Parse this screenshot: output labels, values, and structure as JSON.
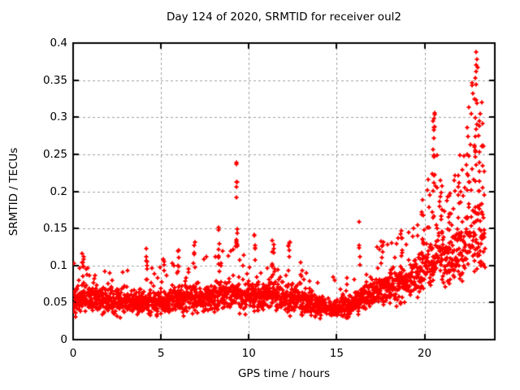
{
  "figure": {
    "title": "Day 124 of 2020, SRMTID for receiver oul2"
  },
  "chart_data": {
    "type": "scatter",
    "title": "Day 124 of 2020, SRMTID for receiver oul2",
    "xlabel": "GPS time / hours",
    "ylabel": "SRMTID / TECUs",
    "xlim": [
      0,
      24
    ],
    "ylim": [
      0,
      0.4
    ],
    "xtick_values": [
      0,
      5,
      10,
      15,
      20
    ],
    "xtick_labels": [
      "0",
      "5",
      "10",
      "15",
      "20"
    ],
    "ytick_values": [
      0,
      0.05,
      0.1,
      0.15,
      0.2,
      0.25,
      0.3,
      0.35,
      0.4
    ],
    "ytick_labels": [
      "0",
      "0.05",
      "0.1",
      "0.15",
      "0.2",
      "0.25",
      "0.3",
      "0.35",
      "0.4"
    ],
    "grid": true,
    "legend": "none",
    "marker": "plus",
    "marker_color": "#ff0000",
    "axis_color": "#000000",
    "grid_color": "#a0a0a0",
    "description": "Dense band of ~30s samples between 0.03 and 0.09 TECUs for hours 0-16, quietest near hour 14-15.5; activity rises after hour 16. Isolated spike columns: ~0.12 near hours 0.6/4.2/5.2/6; ~0.15-0.16 near 6.9/8.4/11.4/12.3/16.3/18.7; ~0.24 column at hour 9.3; ~0.31 column at hour 20.5; maximum ~0.40 in the column near hour 22.9-23.1. Data ends near hour 23.4.",
    "synthesis": {
      "seed": 124,
      "n_base": 2300,
      "t_max": 23.45,
      "baseline": [
        [
          0,
          0.054
        ],
        [
          1.5,
          0.053
        ],
        [
          3,
          0.051
        ],
        [
          4.5,
          0.05
        ],
        [
          6,
          0.054
        ],
        [
          7.5,
          0.058
        ],
        [
          9,
          0.062
        ],
        [
          10,
          0.058
        ],
        [
          11.5,
          0.06
        ],
        [
          12.5,
          0.055
        ],
        [
          13.5,
          0.048
        ],
        [
          14.5,
          0.042
        ],
        [
          15.5,
          0.044
        ],
        [
          16.5,
          0.055
        ],
        [
          17.5,
          0.068
        ],
        [
          18.5,
          0.075
        ],
        [
          19.5,
          0.085
        ],
        [
          20.3,
          0.098
        ],
        [
          20.6,
          0.115
        ],
        [
          21.2,
          0.105
        ],
        [
          22,
          0.115
        ],
        [
          22.6,
          0.13
        ],
        [
          23,
          0.148
        ],
        [
          23.45,
          0.125
        ]
      ],
      "spread": [
        [
          0,
          0.034
        ],
        [
          1,
          0.024
        ],
        [
          4,
          0.022
        ],
        [
          7,
          0.024
        ],
        [
          9,
          0.027
        ],
        [
          12,
          0.026
        ],
        [
          13.5,
          0.02
        ],
        [
          15,
          0.016
        ],
        [
          16,
          0.02
        ],
        [
          17,
          0.027
        ],
        [
          18.5,
          0.03
        ],
        [
          19.5,
          0.032
        ],
        [
          20.4,
          0.042
        ],
        [
          21.2,
          0.048
        ],
        [
          22.2,
          0.052
        ],
        [
          22.9,
          0.065
        ],
        [
          23.45,
          0.06
        ]
      ],
      "tail_prob": [
        [
          0,
          0.07
        ],
        [
          3,
          0.05
        ],
        [
          6,
          0.06
        ],
        [
          9,
          0.07
        ],
        [
          10.5,
          0.06
        ],
        [
          13,
          0.04
        ],
        [
          15,
          0.03
        ],
        [
          16.5,
          0.06
        ],
        [
          18,
          0.09
        ],
        [
          19.5,
          0.11
        ],
        [
          20.5,
          0.16
        ],
        [
          21.5,
          0.2
        ],
        [
          22.3,
          0.24
        ],
        [
          23,
          0.3
        ],
        [
          23.45,
          0.22
        ]
      ],
      "tail_amp": [
        [
          0,
          0.04
        ],
        [
          4,
          0.035
        ],
        [
          8,
          0.045
        ],
        [
          9.3,
          0.05
        ],
        [
          11,
          0.04
        ],
        [
          13,
          0.03
        ],
        [
          16,
          0.045
        ],
        [
          18,
          0.05
        ],
        [
          19.5,
          0.06
        ],
        [
          20.5,
          0.12
        ],
        [
          21.5,
          0.095
        ],
        [
          22.3,
          0.13
        ],
        [
          22.9,
          0.21
        ],
        [
          23.45,
          0.16
        ]
      ],
      "bursts_key": [
        "t_center_hours",
        "t_width_hours",
        "n_points",
        "y_min",
        "y_max"
      ],
      "bursts": [
        [
          0.55,
          0.15,
          7,
          0.085,
          0.118
        ],
        [
          4.2,
          0.1,
          6,
          0.09,
          0.125
        ],
        [
          5.15,
          0.1,
          5,
          0.085,
          0.118
        ],
        [
          6.0,
          0.12,
          6,
          0.088,
          0.128
        ],
        [
          6.9,
          0.1,
          6,
          0.095,
          0.15
        ],
        [
          8.35,
          0.2,
          9,
          0.095,
          0.158
        ],
        [
          9.3,
          0.12,
          9,
          0.125,
          0.165
        ],
        [
          9.32,
          0.08,
          7,
          0.18,
          0.24
        ],
        [
          10.35,
          0.1,
          6,
          0.095,
          0.145
        ],
        [
          11.35,
          0.15,
          7,
          0.095,
          0.148
        ],
        [
          12.3,
          0.12,
          6,
          0.095,
          0.152
        ],
        [
          13.0,
          0.1,
          4,
          0.085,
          0.118
        ],
        [
          16.3,
          0.1,
          5,
          0.1,
          0.165
        ],
        [
          17.6,
          0.2,
          6,
          0.1,
          0.142
        ],
        [
          18.7,
          0.12,
          6,
          0.105,
          0.15
        ],
        [
          19.9,
          0.15,
          6,
          0.11,
          0.158
        ],
        [
          20.5,
          0.15,
          12,
          0.16,
          0.31
        ],
        [
          20.55,
          0.1,
          6,
          0.285,
          0.308
        ],
        [
          20.95,
          0.12,
          7,
          0.13,
          0.22
        ],
        [
          21.4,
          0.15,
          7,
          0.12,
          0.2
        ],
        [
          22.0,
          0.15,
          9,
          0.13,
          0.25
        ],
        [
          22.45,
          0.15,
          8,
          0.14,
          0.275
        ],
        [
          22.85,
          0.12,
          10,
          0.15,
          0.3
        ],
        [
          22.95,
          0.1,
          9,
          0.28,
          0.402
        ],
        [
          23.1,
          0.1,
          8,
          0.17,
          0.3
        ],
        [
          23.3,
          0.12,
          6,
          0.1,
          0.27
        ]
      ]
    }
  }
}
